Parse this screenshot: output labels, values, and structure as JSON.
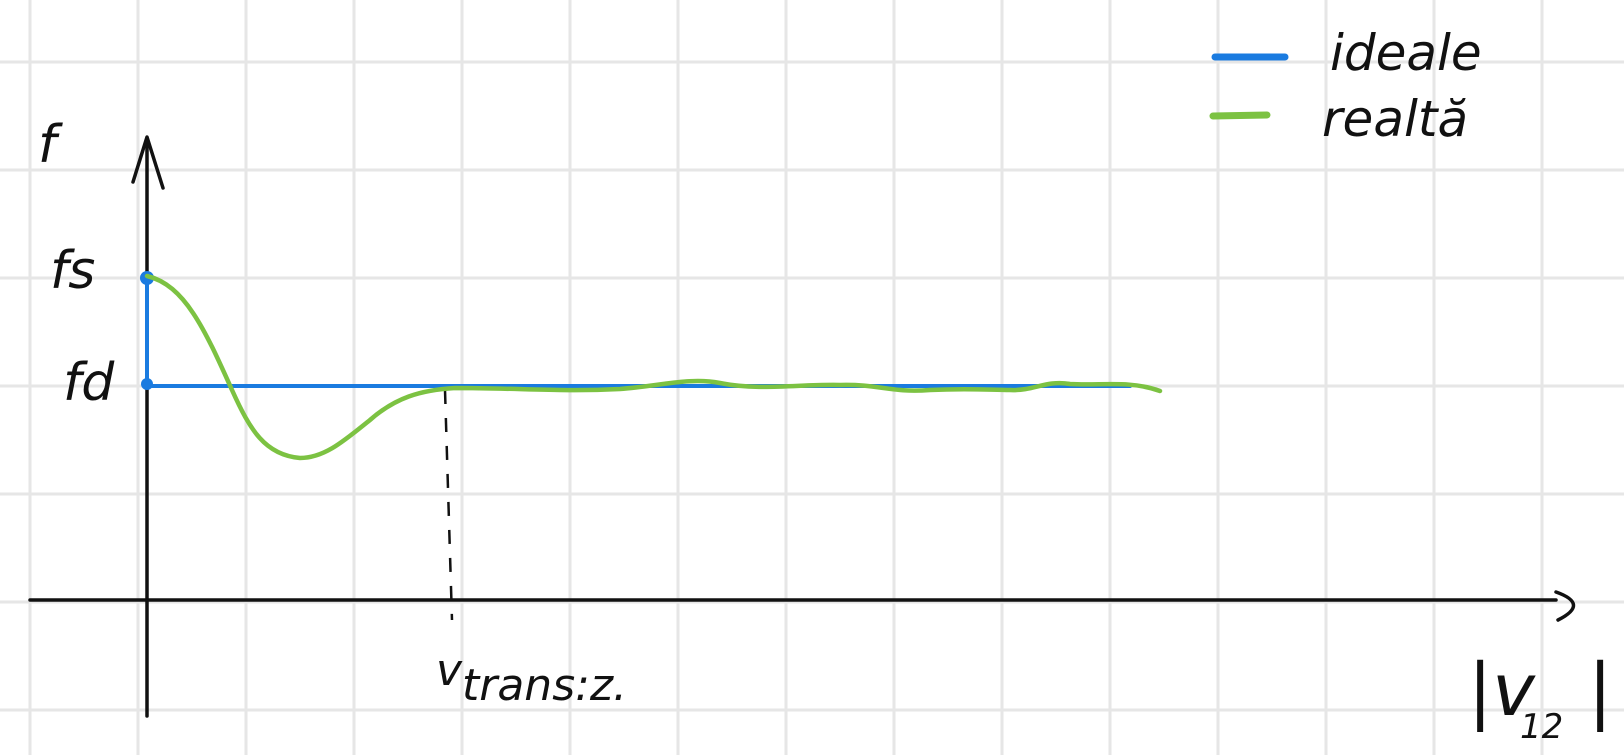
{
  "y_axis_label": "f",
  "x_axis_label": {
    "main": "|v",
    "subscript": "12",
    "close": "|"
  },
  "levels": {
    "fs_label": "fs",
    "fd_label": "fd"
  },
  "transition": {
    "label_v": "v",
    "label_rest": "trans:z."
  },
  "legend": {
    "items": [
      {
        "label": "ideale",
        "color": "#1a7be0"
      },
      {
        "label": "realtă",
        "color": "#7cc242"
      }
    ]
  },
  "colors": {
    "grid": "#e6e6e6",
    "axis": "#111111",
    "ideal": "#1a7be0",
    "real": "#7cc242"
  }
}
